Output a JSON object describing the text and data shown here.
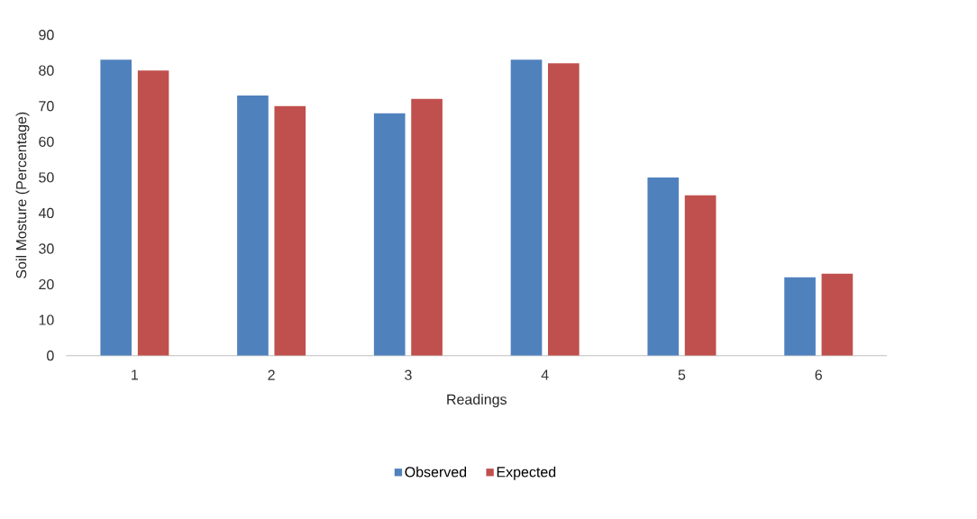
{
  "chart_data": {
    "type": "bar",
    "xlabel": "Readings",
    "ylabel": "Soil Mosture (Percentage)",
    "categories": [
      "1",
      "2",
      "3",
      "4",
      "5",
      "6"
    ],
    "series": [
      {
        "name": "Observed",
        "color": "#4f81bd",
        "values": [
          83,
          73,
          68,
          83,
          50,
          22
        ]
      },
      {
        "name": "Expected",
        "color": "#c0504d",
        "values": [
          80,
          70,
          72,
          82,
          45,
          23
        ]
      }
    ],
    "ylim": [
      0,
      90
    ],
    "yticks": [
      0,
      10,
      20,
      30,
      40,
      50,
      60,
      70,
      80,
      90
    ],
    "grid": false,
    "legend": "bottom"
  }
}
